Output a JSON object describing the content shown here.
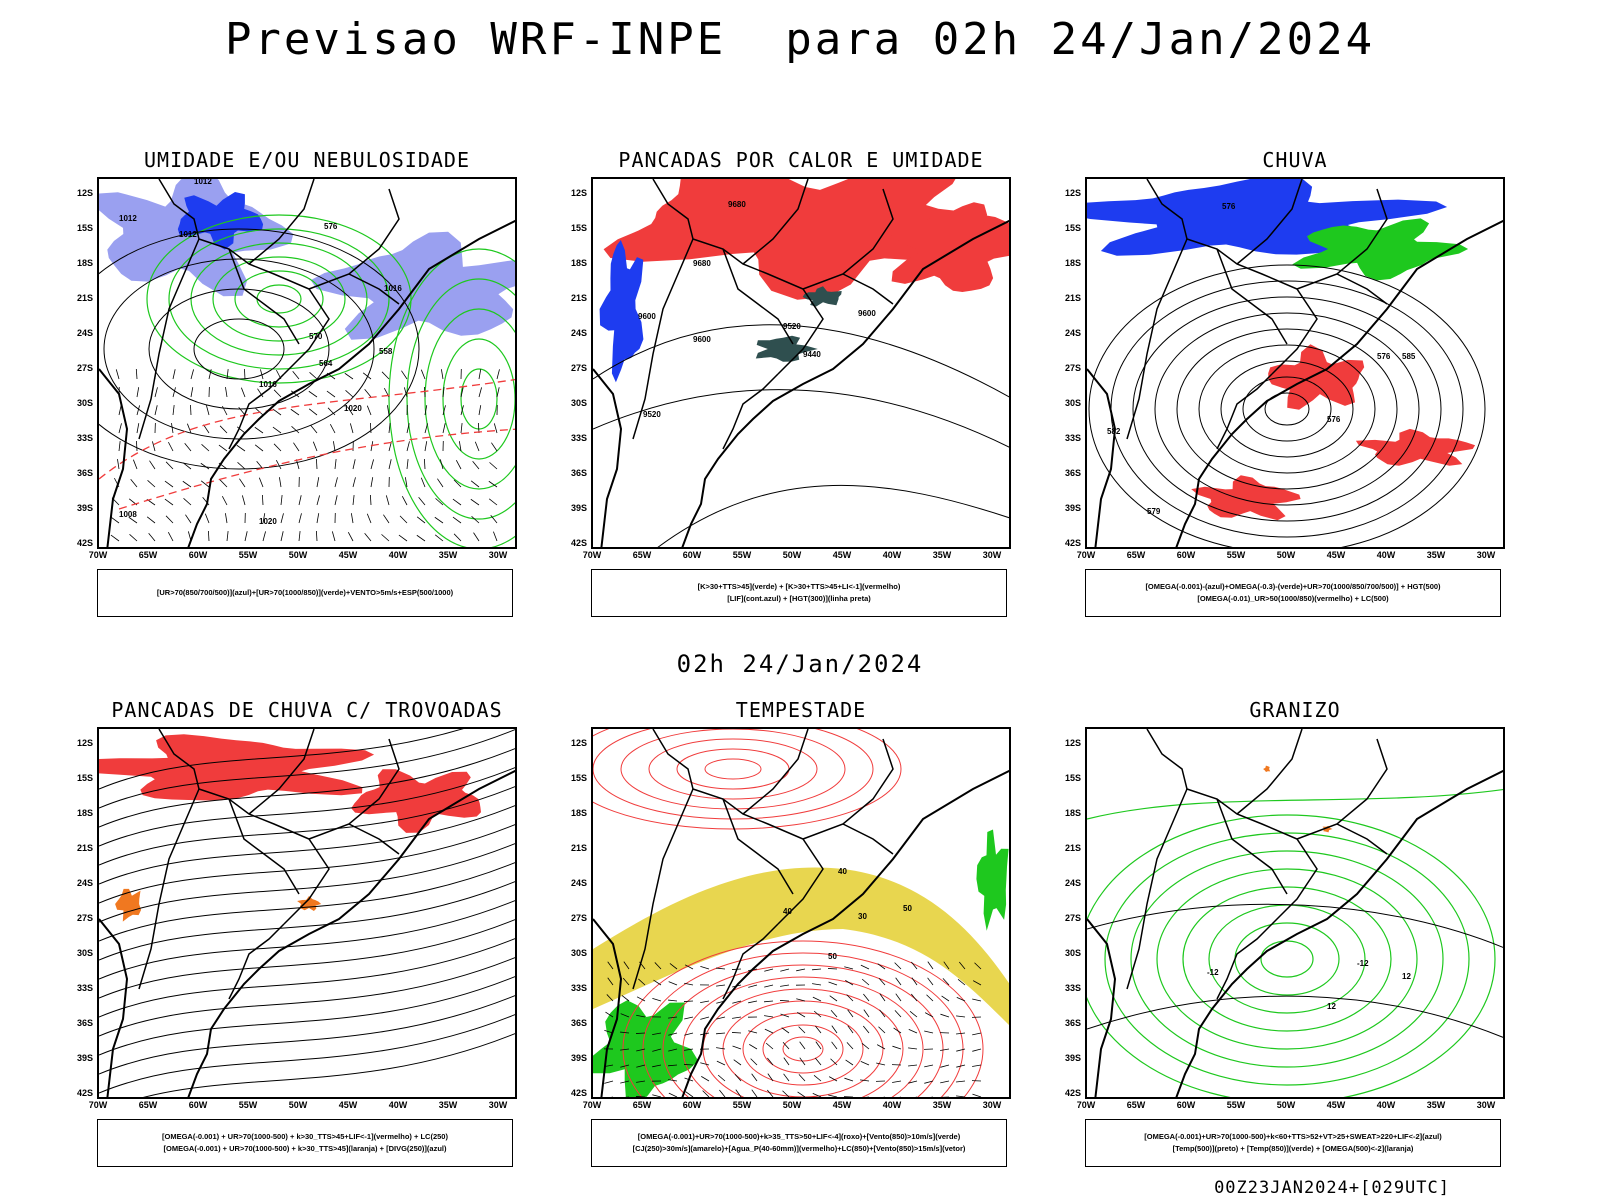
{
  "header": {
    "title": "Previsao WRF-INPE  para 02h 24/Jan/2024",
    "mid_timestamp": "02h 24/Jan/2024",
    "footer_run": "00Z23JAN2024+[029UTC]"
  },
  "axes": {
    "lat_labels": [
      "12S",
      "15S",
      "18S",
      "21S",
      "24S",
      "27S",
      "30S",
      "33S",
      "36S",
      "39S",
      "42S"
    ],
    "lon_labels": [
      "70W",
      "65W",
      "60W",
      "55W",
      "50W",
      "45W",
      "40W",
      "35W",
      "30W"
    ]
  },
  "colors": {
    "red": "#f03c3c",
    "green": "#1ec81e",
    "blue": "#1e3cf0",
    "lavender": "#9aa0f0",
    "yellow": "#e6d23c",
    "orange": "#f07820",
    "darkteal": "#2f4f4f"
  },
  "panels": [
    {
      "id": "umidade",
      "title": "UMIDADE E/OU NEBULOSIDADE",
      "legend": [
        "[UR>70(850/700/500)](azul)+[UR>70(1000/850)](verde)+VENTO>5m/s+ESP(500/1000)"
      ],
      "contour_labels": [
        "1012",
        "1012",
        "1012",
        "1016",
        "1016",
        "1020",
        "1020",
        "1008",
        "576",
        "570",
        "564",
        "558"
      ]
    },
    {
      "id": "pancadas-calor",
      "title": "PANCADAS POR CALOR E UMIDADE",
      "legend": [
        "[K>30+TTS>45](verde) + [K>30+TTS>45+LI<-1](vermelho)",
        "[LIF](cont.azul) + [HGT(300)](linha preta)"
      ],
      "contour_labels": [
        "9680",
        "9680",
        "9600",
        "9600",
        "9520",
        "9520",
        "9440",
        "9600"
      ]
    },
    {
      "id": "chuva",
      "title": "CHUVA",
      "legend": [
        "[OMEGA(-0.001)-(azul)+OMEGA(-0.3)-(verde)+UR>70(1000/850/700/500)] + HGT(500)",
        "[OMEGA(-0.01)_UR>50(1000/850)(vermelho) + LC(500)"
      ],
      "contour_labels": [
        "576",
        "582",
        "576",
        "576",
        "579",
        "585"
      ]
    },
    {
      "id": "trovoadas",
      "title": "PANCADAS DE CHUVA C/ TROVOADAS",
      "legend": [
        "[OMEGA(-0.001) + UR>70(1000-500) + k>30_TTS>45+LIF<-1](vermelho) + LC(250)",
        "[OMEGA(-0.001) + UR>70(1000-500) + k>30_TTS>45](laranja) + [DIVG(250)](azul)"
      ],
      "contour_labels": []
    },
    {
      "id": "tempestade",
      "title": "TEMPESTADE",
      "legend": [
        "[OMEGA(-0.001)+UR>70(1000-500)+k>35_TTS>50+LIF<-4](roxo)+[Vento(850)>10m/s](verde)",
        "[CJ(250)>30m/s](amarelo)+[Agua_P(40-60mm)](vermelho)+LC(850)+[Vento(850)>15m/s](vetor)"
      ],
      "contour_labels": [
        "50",
        "40",
        "50",
        "40",
        "30"
      ]
    },
    {
      "id": "granizo",
      "title": "GRANIZO",
      "legend": [
        "[OMEGA(-0.001)+UR>70(1000-500)+k<60+TTS>52+VT>25+SWEAT>220+LIF<-2](azul)",
        "[Temp(500)](preto) + [Temp(850)](verde) + [OMEGA(500)<-2](laranja)"
      ],
      "contour_labels": [
        "-12",
        "-12",
        "12",
        "12"
      ]
    }
  ]
}
